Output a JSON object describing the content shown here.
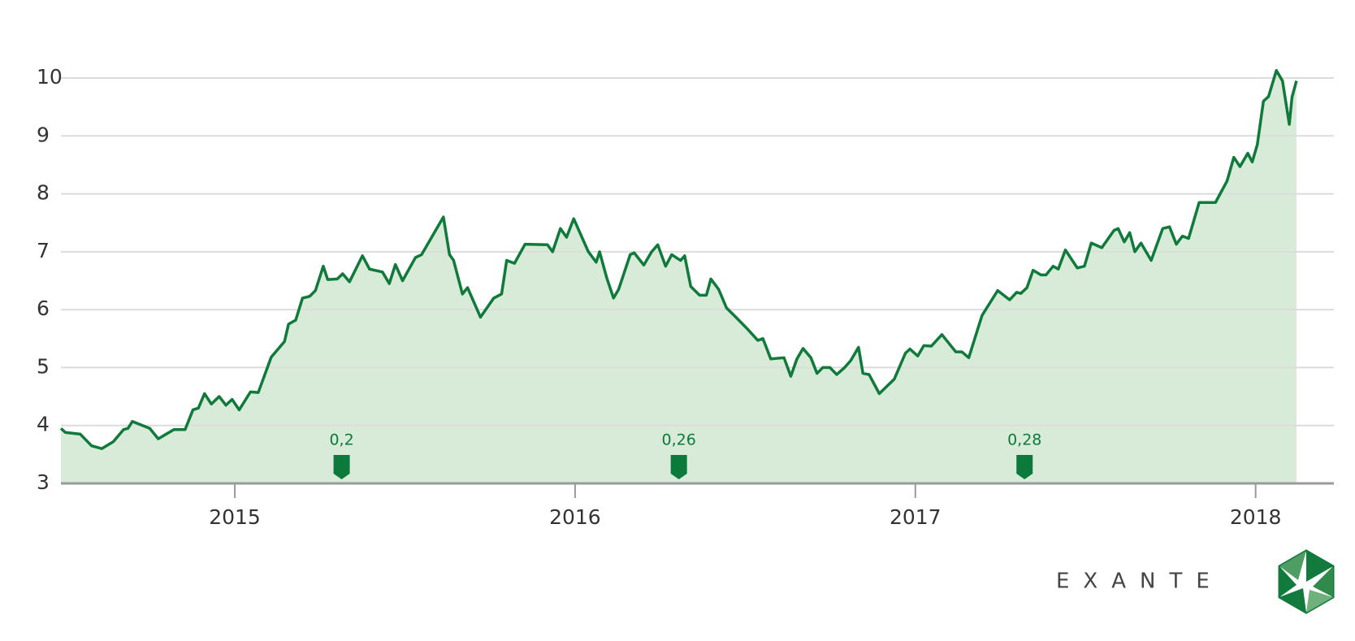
{
  "chart_data": {
    "type": "area",
    "color": "#0f7a3a",
    "fill_color": "#d8ebd8",
    "grid": true,
    "xlim": [
      2014.489,
      2018.23
    ],
    "xticks": [
      2015,
      2016,
      2017,
      2018
    ],
    "ylim": [
      3,
      10
    ],
    "yticks": [
      3,
      4,
      5,
      6,
      7,
      8,
      9,
      10
    ],
    "x": [
      2014.489,
      2014.502,
      2014.546,
      2014.579,
      2014.609,
      2014.643,
      2014.673,
      2014.686,
      2014.699,
      2014.75,
      2014.775,
      2014.821,
      2014.854,
      2014.877,
      2014.893,
      2014.911,
      2014.931,
      2014.954,
      2014.974,
      2014.992,
      2015.013,
      2015.046,
      2015.069,
      2015.107,
      2015.146,
      2015.158,
      2015.179,
      2015.199,
      2015.22,
      2015.237,
      2015.26,
      2015.273,
      2015.301,
      2015.317,
      2015.337,
      2015.375,
      2015.396,
      2015.434,
      2015.454,
      2015.472,
      2015.493,
      2015.531,
      2015.549,
      2015.613,
      2015.631,
      2015.643,
      2015.669,
      2015.684,
      2015.722,
      2015.761,
      2015.784,
      2015.799,
      2015.822,
      2015.853,
      2015.919,
      2015.934,
      2015.957,
      2015.975,
      2015.996,
      2016.039,
      2016.062,
      2016.072,
      2016.093,
      2016.113,
      2016.128,
      2016.162,
      2016.174,
      2016.202,
      2016.225,
      2016.243,
      2016.266,
      2016.284,
      2016.31,
      2016.322,
      2016.34,
      2016.366,
      2016.386,
      2016.399,
      2016.422,
      2016.445,
      2016.476,
      2016.506,
      2016.537,
      2016.552,
      2016.575,
      2016.614,
      2016.634,
      2016.652,
      2016.67,
      2016.693,
      2016.711,
      2016.728,
      2016.749,
      2016.769,
      2016.792,
      2016.81,
      2016.833,
      2016.846,
      2016.864,
      2016.894,
      2016.938,
      2016.971,
      2016.984,
      2017.007,
      2017.025,
      2017.047,
      2017.078,
      2017.119,
      2017.137,
      2017.157,
      2017.196,
      2017.242,
      2017.277,
      2017.298,
      2017.31,
      2017.328,
      2017.346,
      2017.369,
      2017.384,
      2017.405,
      2017.42,
      2017.441,
      2017.476,
      2017.497,
      2017.517,
      2017.548,
      2017.584,
      2017.596,
      2017.614,
      2017.63,
      2017.645,
      2017.663,
      2017.693,
      2017.727,
      2017.747,
      2017.767,
      2017.785,
      2017.803,
      2017.834,
      2017.882,
      2017.916,
      2017.936,
      2017.954,
      2017.977,
      2017.99,
      2018.005,
      2018.023,
      2018.038,
      2018.061,
      2018.079,
      2018.099,
      2018.107,
      2018.12
    ],
    "values": [
      3.95,
      3.88,
      3.85,
      3.65,
      3.6,
      3.72,
      3.93,
      3.95,
      4.07,
      3.95,
      3.77,
      3.93,
      3.93,
      4.27,
      4.3,
      4.55,
      4.37,
      4.5,
      4.35,
      4.45,
      4.27,
      4.58,
      4.57,
      5.18,
      5.45,
      5.75,
      5.82,
      6.2,
      6.23,
      6.33,
      6.75,
      6.52,
      6.53,
      6.62,
      6.48,
      6.93,
      6.7,
      6.65,
      6.45,
      6.78,
      6.5,
      6.9,
      6.95,
      7.6,
      6.95,
      6.85,
      6.27,
      6.38,
      5.87,
      6.2,
      6.27,
      6.85,
      6.8,
      7.13,
      7.12,
      7.0,
      7.4,
      7.25,
      7.57,
      7.0,
      6.82,
      7.0,
      6.55,
      6.2,
      6.35,
      6.95,
      6.98,
      6.77,
      7.0,
      7.12,
      6.75,
      6.95,
      6.85,
      6.93,
      6.4,
      6.25,
      6.25,
      6.53,
      6.35,
      6.03,
      5.85,
      5.67,
      5.47,
      5.5,
      5.15,
      5.17,
      4.85,
      5.15,
      5.33,
      5.17,
      4.9,
      5.0,
      5.0,
      4.88,
      5.0,
      5.12,
      5.35,
      4.9,
      4.88,
      4.55,
      4.8,
      5.25,
      5.32,
      5.2,
      5.38,
      5.37,
      5.57,
      5.27,
      5.27,
      5.17,
      5.9,
      6.33,
      6.17,
      6.3,
      6.28,
      6.38,
      6.68,
      6.6,
      6.6,
      6.75,
      6.7,
      7.03,
      6.72,
      6.75,
      7.15,
      7.07,
      7.37,
      7.4,
      7.17,
      7.33,
      7.0,
      7.15,
      6.85,
      7.4,
      7.43,
      7.13,
      7.27,
      7.23,
      7.85,
      7.85,
      8.22,
      8.63,
      8.47,
      8.7,
      8.55,
      8.85,
      9.6,
      9.68,
      10.13,
      9.95,
      9.2,
      9.67,
      9.95
    ],
    "annotations": [
      {
        "x": 2015.314,
        "text": "0,2"
      },
      {
        "x": 2016.305,
        "text": "0,26"
      },
      {
        "x": 2017.321,
        "text": "0,28"
      }
    ]
  },
  "brand": "EXANTE"
}
